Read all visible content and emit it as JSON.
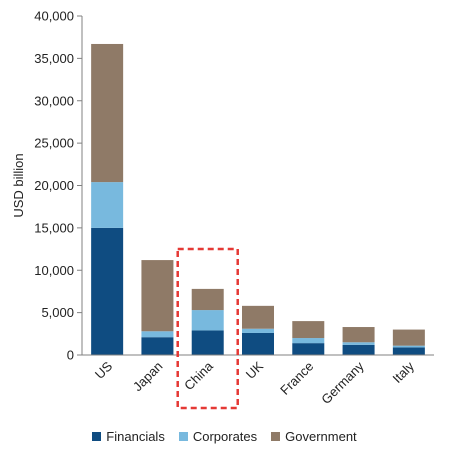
{
  "chart_data": {
    "type": "bar",
    "stacked": true,
    "categories": [
      "US",
      "Japan",
      "China",
      "UK",
      "France",
      "Germany",
      "Italy"
    ],
    "series": [
      {
        "name": "Financials",
        "color": "#0f4c81",
        "values": [
          15000,
          2100,
          2900,
          2600,
          1400,
          1200,
          900
        ]
      },
      {
        "name": "Corporates",
        "color": "#78b9de",
        "values": [
          5400,
          700,
          2400,
          500,
          600,
          300,
          200
        ]
      },
      {
        "name": "Government",
        "color": "#8f7a67",
        "values": [
          16300,
          8400,
          2500,
          2700,
          2000,
          1800,
          1900
        ]
      }
    ],
    "title": "",
    "xlabel": "",
    "ylabel": "USD billion",
    "ylim": [
      0,
      40000
    ],
    "yticks": [
      0,
      5000,
      10000,
      15000,
      20000,
      25000,
      30000,
      35000,
      40000
    ],
    "ytick_labels": [
      "0",
      "5,000",
      "10,000",
      "15,000",
      "20,000",
      "25,000",
      "30,000",
      "35,000",
      "40,000"
    ],
    "highlight_category": "China",
    "highlight_color": "#e53935",
    "grid": false,
    "legend_position": "bottom"
  }
}
